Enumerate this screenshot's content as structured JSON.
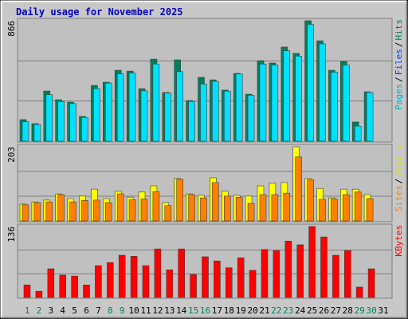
{
  "chart_data": [
    {
      "type": "bar",
      "title": "Daily usage for November 2025",
      "ylim": [
        0,
        866
      ],
      "yticks": [
        866
      ],
      "grid_divisions": 3,
      "legend": [
        {
          "name": "Pages",
          "color": "#00b0c8"
        },
        {
          "name": "Files",
          "color": "#0040ff"
        },
        {
          "name": "Hits",
          "color": "#00805c"
        }
      ],
      "legend_separator": "/",
      "series": [
        {
          "color": "#00805c",
          "values": [
            155,
            126,
            361,
            298,
            281,
            178,
            401,
            424,
            510,
            504,
            378,
            590,
            350,
            585,
            292,
            459,
            441,
            367,
            487,
            338,
            579,
            562,
            677,
            631,
            866,
            722,
            510,
            573,
            138,
            355,
            0
          ]
        },
        {
          "color": "#00e0ff",
          "values": [
            140,
            120,
            335,
            285,
            270,
            170,
            378,
            418,
            484,
            490,
            362,
            555,
            346,
            500,
            285,
            410,
            430,
            360,
            483,
            330,
            555,
            548,
            650,
            612,
            840,
            700,
            496,
            548,
            108,
            350,
            0
          ]
        }
      ]
    },
    {
      "type": "bar",
      "ylim": [
        0,
        203
      ],
      "yticks": [
        203
      ],
      "grid_divisions": 3,
      "legend": [
        {
          "name": "Sites",
          "color": "#ff8000"
        },
        {
          "name": "Visits",
          "color": "#e0e000"
        }
      ],
      "legend_separator": "/",
      "series": [
        {
          "color": "#ffff00",
          "values": [
            46,
            52,
            57,
            74,
            61,
            68,
            87,
            61,
            81,
            65,
            79,
            96,
            50,
            116,
            74,
            70,
            118,
            81,
            70,
            68,
            96,
            103,
            105,
            203,
            116,
            89,
            63,
            87,
            87,
            72,
            0
          ]
        },
        {
          "color": "#ff8000",
          "values": [
            44,
            50,
            52,
            72,
            52,
            56,
            57,
            50,
            74,
            58,
            60,
            80,
            42,
            114,
            72,
            63,
            105,
            68,
            65,
            48,
            72,
            72,
            76,
            175,
            113,
            59,
            60,
            72,
            79,
            61,
            0
          ]
        }
      ]
    },
    {
      "type": "bar",
      "ylim": [
        0,
        136
      ],
      "yticks": [
        136
      ],
      "grid_divisions": 3,
      "legend": [
        {
          "name": "KBytes",
          "color": "#ff0000"
        }
      ],
      "categories": [
        "1",
        "2",
        "3",
        "4",
        "5",
        "6",
        "7",
        "8",
        "9",
        "10",
        "11",
        "12",
        "13",
        "14",
        "15",
        "16",
        "17",
        "18",
        "19",
        "20",
        "21",
        "22",
        "23",
        "24",
        "25",
        "26",
        "27",
        "28",
        "29",
        "30",
        "31"
      ],
      "category_colors": [
        "#00805c",
        "#00805c",
        "#000000",
        "#000000",
        "#000000",
        "#000000",
        "#000000",
        "#00805c",
        "#00805c",
        "#000000",
        "#000000",
        "#000000",
        "#000000",
        "#000000",
        "#00805c",
        "#00805c",
        "#000000",
        "#000000",
        "#000000",
        "#000000",
        "#000000",
        "#00805c",
        "#00805c",
        "#000000",
        "#000000",
        "#000000",
        "#000000",
        "#000000",
        "#00805c",
        "#00805c",
        "#000000"
      ],
      "series": [
        {
          "color": "#ff0000",
          "values": [
            24,
            12,
            55,
            43,
            41,
            24,
            61,
            67,
            81,
            79,
            61,
            93,
            53,
            93,
            44,
            78,
            70,
            57,
            76,
            52,
            92,
            90,
            108,
            101,
            136,
            116,
            81,
            90,
            20,
            55,
            0
          ]
        }
      ]
    }
  ]
}
